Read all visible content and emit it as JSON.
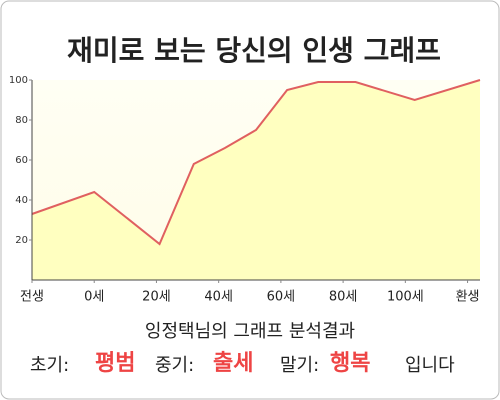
{
  "chart_data": {
    "type": "area",
    "title": "재미로 보는 당신의 인생 그래프",
    "series": [
      {
        "x": [
          -20,
          0,
          21,
          32,
          42,
          52,
          62,
          72,
          84,
          103,
          124
        ],
        "values": [
          33,
          44,
          18,
          58,
          66,
          75,
          95,
          99,
          99,
          90,
          100
        ],
        "color": "#e06060",
        "fill": "#ffffc0"
      }
    ],
    "xlim": [
      -20,
      124
    ],
    "xticks": [
      {
        "value": -20,
        "label": "전생"
      },
      {
        "value": 0,
        "label": "0세"
      },
      {
        "value": 20,
        "label": "20세"
      },
      {
        "value": 40,
        "label": "40세"
      },
      {
        "value": 60,
        "label": "60세"
      },
      {
        "value": 80,
        "label": "80세"
      },
      {
        "value": 100,
        "label": "100세"
      },
      {
        "value": 120,
        "label": "환생"
      }
    ],
    "ylim": [
      0,
      100
    ],
    "yticks": [
      20,
      40,
      60,
      80,
      100
    ],
    "grid": false
  },
  "analysis": {
    "heading": "잉정택님의 그래프 분석결과",
    "early_label": "초기:",
    "early": "평범",
    "middle_label": "중기:",
    "middle": "출세",
    "late_label": "말기:",
    "late": "행복",
    "ending": "입니다"
  }
}
